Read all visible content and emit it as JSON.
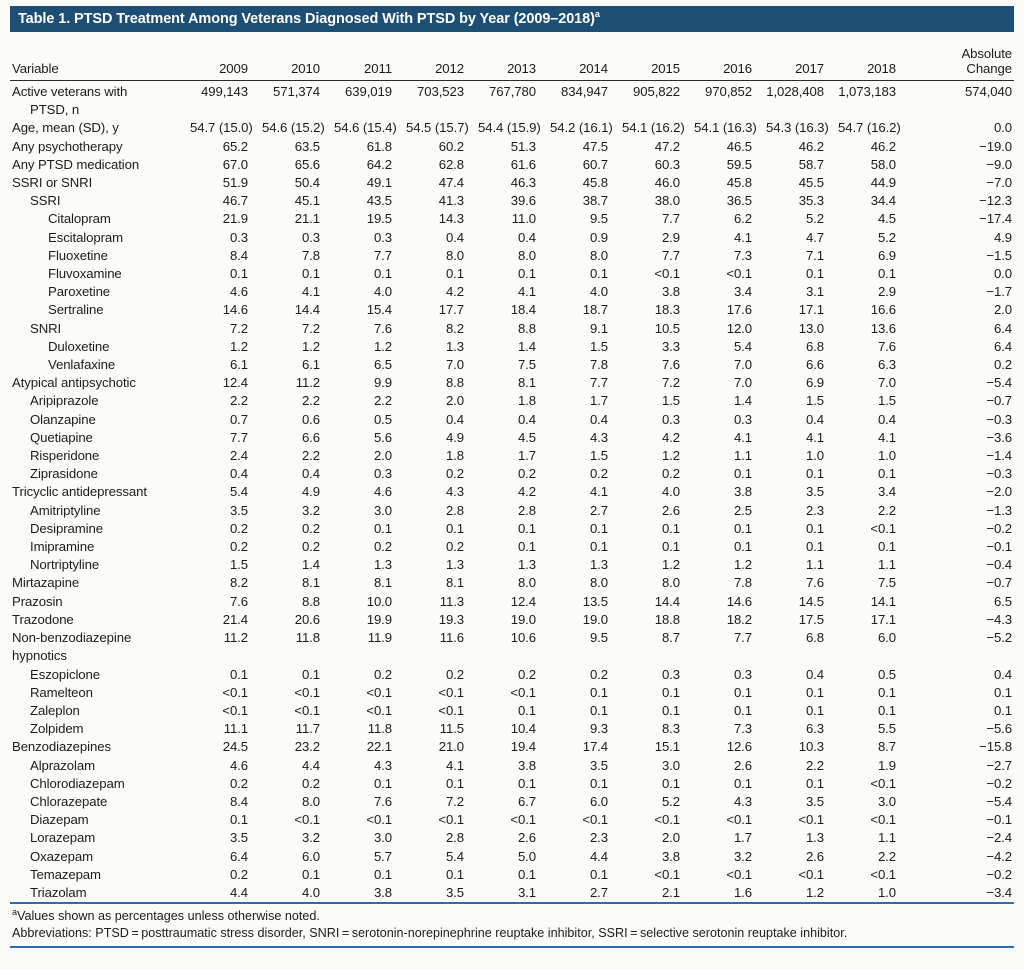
{
  "title": {
    "text": "Table 1. PTSD Treatment Among Veterans Diagnosed With PTSD by Year (2009–2018)",
    "superscript": "a"
  },
  "colors": {
    "title_bar": "#1d4e74",
    "rule_blue": "#2b6ea9",
    "header_rule": "#2a2a2a"
  },
  "columns": {
    "variable": "Variable",
    "years": [
      "2009",
      "2010",
      "2011",
      "2012",
      "2013",
      "2014",
      "2015",
      "2016",
      "2017",
      "2018"
    ],
    "change_line1": "Absolute",
    "change_line2": "Change"
  },
  "rows": [
    {
      "label": "Active veterans with",
      "label2": "PTSD, n",
      "indent": 0,
      "indent2": 1,
      "values": [
        "499,143",
        "571,374",
        "639,019",
        "703,523",
        "767,780",
        "834,947",
        "905,822",
        "970,852",
        "1,028,408",
        "1,073,183",
        "574,040"
      ]
    },
    {
      "label": "Age, mean (SD), y",
      "indent": 0,
      "values": [
        "54.7 (15.0)",
        "54.6 (15.2)",
        "54.6 (15.4)",
        "54.5 (15.7)",
        "54.4 (15.9)",
        "54.2 (16.1)",
        "54.1 (16.2)",
        "54.1 (16.3)",
        "54.3 (16.3)",
        "54.7 (16.2)",
        "0.0"
      ]
    },
    {
      "label": "Any psychotherapy",
      "indent": 0,
      "values": [
        "65.2",
        "63.5",
        "61.8",
        "60.2",
        "51.3",
        "47.5",
        "47.2",
        "46.5",
        "46.2",
        "46.2",
        "−19.0"
      ]
    },
    {
      "label": "Any PTSD medication",
      "indent": 0,
      "values": [
        "67.0",
        "65.6",
        "64.2",
        "62.8",
        "61.6",
        "60.7",
        "60.3",
        "59.5",
        "58.7",
        "58.0",
        "−9.0"
      ]
    },
    {
      "label": "SSRI or SNRI",
      "indent": 0,
      "values": [
        "51.9",
        "50.4",
        "49.1",
        "47.4",
        "46.3",
        "45.8",
        "46.0",
        "45.8",
        "45.5",
        "44.9",
        "−7.0"
      ]
    },
    {
      "label": "SSRI",
      "indent": 1,
      "values": [
        "46.7",
        "45.1",
        "43.5",
        "41.3",
        "39.6",
        "38.7",
        "38.0",
        "36.5",
        "35.3",
        "34.4",
        "−12.3"
      ]
    },
    {
      "label": "Citalopram",
      "indent": 2,
      "values": [
        "21.9",
        "21.1",
        "19.5",
        "14.3",
        "11.0",
        "9.5",
        "7.7",
        "6.2",
        "5.2",
        "4.5",
        "−17.4"
      ]
    },
    {
      "label": "Escitalopram",
      "indent": 2,
      "values": [
        "0.3",
        "0.3",
        "0.3",
        "0.4",
        "0.4",
        "0.9",
        "2.9",
        "4.1",
        "4.7",
        "5.2",
        "4.9"
      ]
    },
    {
      "label": "Fluoxetine",
      "indent": 2,
      "values": [
        "8.4",
        "7.8",
        "7.7",
        "8.0",
        "8.0",
        "8.0",
        "7.7",
        "7.3",
        "7.1",
        "6.9",
        "−1.5"
      ]
    },
    {
      "label": "Fluvoxamine",
      "indent": 2,
      "values": [
        "0.1",
        "0.1",
        "0.1",
        "0.1",
        "0.1",
        "0.1",
        "<0.1",
        "<0.1",
        "0.1",
        "0.1",
        "0.0"
      ]
    },
    {
      "label": "Paroxetine",
      "indent": 2,
      "values": [
        "4.6",
        "4.1",
        "4.0",
        "4.2",
        "4.1",
        "4.0",
        "3.8",
        "3.4",
        "3.1",
        "2.9",
        "−1.7"
      ]
    },
    {
      "label": "Sertraline",
      "indent": 2,
      "values": [
        "14.6",
        "14.4",
        "15.4",
        "17.7",
        "18.4",
        "18.7",
        "18.3",
        "17.6",
        "17.1",
        "16.6",
        "2.0"
      ]
    },
    {
      "label": "SNRI",
      "indent": 1,
      "values": [
        "7.2",
        "7.2",
        "7.6",
        "8.2",
        "8.8",
        "9.1",
        "10.5",
        "12.0",
        "13.0",
        "13.6",
        "6.4"
      ]
    },
    {
      "label": "Duloxetine",
      "indent": 2,
      "values": [
        "1.2",
        "1.2",
        "1.2",
        "1.3",
        "1.4",
        "1.5",
        "3.3",
        "5.4",
        "6.8",
        "7.6",
        "6.4"
      ]
    },
    {
      "label": "Venlafaxine",
      "indent": 2,
      "values": [
        "6.1",
        "6.1",
        "6.5",
        "7.0",
        "7.5",
        "7.8",
        "7.6",
        "7.0",
        "6.6",
        "6.3",
        "0.2"
      ]
    },
    {
      "label": "Atypical antipsychotic",
      "indent": 0,
      "values": [
        "12.4",
        "11.2",
        "9.9",
        "8.8",
        "8.1",
        "7.7",
        "7.2",
        "7.0",
        "6.9",
        "7.0",
        "−5.4"
      ]
    },
    {
      "label": "Aripiprazole",
      "indent": 1,
      "values": [
        "2.2",
        "2.2",
        "2.2",
        "2.0",
        "1.8",
        "1.7",
        "1.5",
        "1.4",
        "1.5",
        "1.5",
        "−0.7"
      ]
    },
    {
      "label": "Olanzapine",
      "indent": 1,
      "values": [
        "0.7",
        "0.6",
        "0.5",
        "0.4",
        "0.4",
        "0.4",
        "0.3",
        "0.3",
        "0.4",
        "0.4",
        "−0.3"
      ]
    },
    {
      "label": "Quetiapine",
      "indent": 1,
      "values": [
        "7.7",
        "6.6",
        "5.6",
        "4.9",
        "4.5",
        "4.3",
        "4.2",
        "4.1",
        "4.1",
        "4.1",
        "−3.6"
      ]
    },
    {
      "label": "Risperidone",
      "indent": 1,
      "values": [
        "2.4",
        "2.2",
        "2.0",
        "1.8",
        "1.7",
        "1.5",
        "1.2",
        "1.1",
        "1.0",
        "1.0",
        "−1.4"
      ]
    },
    {
      "label": "Ziprasidone",
      "indent": 1,
      "values": [
        "0.4",
        "0.4",
        "0.3",
        "0.2",
        "0.2",
        "0.2",
        "0.2",
        "0.1",
        "0.1",
        "0.1",
        "−0.3"
      ]
    },
    {
      "label": "Tricyclic antidepressant",
      "indent": 0,
      "values": [
        "5.4",
        "4.9",
        "4.6",
        "4.3",
        "4.2",
        "4.1",
        "4.0",
        "3.8",
        "3.5",
        "3.4",
        "−2.0"
      ]
    },
    {
      "label": "Amitriptyline",
      "indent": 1,
      "values": [
        "3.5",
        "3.2",
        "3.0",
        "2.8",
        "2.8",
        "2.7",
        "2.6",
        "2.5",
        "2.3",
        "2.2",
        "−1.3"
      ]
    },
    {
      "label": "Desipramine",
      "indent": 1,
      "values": [
        "0.2",
        "0.2",
        "0.1",
        "0.1",
        "0.1",
        "0.1",
        "0.1",
        "0.1",
        "0.1",
        "<0.1",
        "−0.2"
      ]
    },
    {
      "label": "Imipramine",
      "indent": 1,
      "values": [
        "0.2",
        "0.2",
        "0.2",
        "0.2",
        "0.1",
        "0.1",
        "0.1",
        "0.1",
        "0.1",
        "0.1",
        "−0.1"
      ]
    },
    {
      "label": "Nortriptyline",
      "indent": 1,
      "values": [
        "1.5",
        "1.4",
        "1.3",
        "1.3",
        "1.3",
        "1.3",
        "1.2",
        "1.2",
        "1.1",
        "1.1",
        "−0.4"
      ]
    },
    {
      "label": "Mirtazapine",
      "indent": 0,
      "values": [
        "8.2",
        "8.1",
        "8.1",
        "8.1",
        "8.0",
        "8.0",
        "8.0",
        "7.8",
        "7.6",
        "7.5",
        "−0.7"
      ]
    },
    {
      "label": "Prazosin",
      "indent": 0,
      "values": [
        "7.6",
        "8.8",
        "10.0",
        "11.3",
        "12.4",
        "13.5",
        "14.4",
        "14.6",
        "14.5",
        "14.1",
        "6.5"
      ]
    },
    {
      "label": "Trazodone",
      "indent": 0,
      "values": [
        "21.4",
        "20.6",
        "19.9",
        "19.3",
        "19.0",
        "19.0",
        "18.8",
        "18.2",
        "17.5",
        "17.1",
        "−4.3"
      ]
    },
    {
      "label": "Non-benzodiazepine",
      "label2": "hypnotics",
      "indent": 0,
      "indent2": 0,
      "values": [
        "11.2",
        "11.8",
        "11.9",
        "11.6",
        "10.6",
        "9.5",
        "8.7",
        "7.7",
        "6.8",
        "6.0",
        "−5.2"
      ]
    },
    {
      "label": "Eszopiclone",
      "indent": 1,
      "values": [
        "0.1",
        "0.1",
        "0.2",
        "0.2",
        "0.2",
        "0.2",
        "0.3",
        "0.3",
        "0.4",
        "0.5",
        "0.4"
      ]
    },
    {
      "label": "Ramelteon",
      "indent": 1,
      "values": [
        "<0.1",
        "<0.1",
        "<0.1",
        "<0.1",
        "<0.1",
        "0.1",
        "0.1",
        "0.1",
        "0.1",
        "0.1",
        "0.1"
      ]
    },
    {
      "label": "Zaleplon",
      "indent": 1,
      "values": [
        "<0.1",
        "<0.1",
        "<0.1",
        "<0.1",
        "0.1",
        "0.1",
        "0.1",
        "0.1",
        "0.1",
        "0.1",
        "0.1"
      ]
    },
    {
      "label": "Zolpidem",
      "indent": 1,
      "values": [
        "11.1",
        "11.7",
        "11.8",
        "11.5",
        "10.4",
        "9.3",
        "8.3",
        "7.3",
        "6.3",
        "5.5",
        "−5.6"
      ]
    },
    {
      "label": "Benzodiazepines",
      "indent": 0,
      "values": [
        "24.5",
        "23.2",
        "22.1",
        "21.0",
        "19.4",
        "17.4",
        "15.1",
        "12.6",
        "10.3",
        "8.7",
        "−15.8"
      ]
    },
    {
      "label": "Alprazolam",
      "indent": 1,
      "values": [
        "4.6",
        "4.4",
        "4.3",
        "4.1",
        "3.8",
        "3.5",
        "3.0",
        "2.6",
        "2.2",
        "1.9",
        "−2.7"
      ]
    },
    {
      "label": "Chlorodiazepam",
      "indent": 1,
      "values": [
        "0.2",
        "0.2",
        "0.1",
        "0.1",
        "0.1",
        "0.1",
        "0.1",
        "0.1",
        "0.1",
        "<0.1",
        "−0.2"
      ]
    },
    {
      "label": "Chlorazepate",
      "indent": 1,
      "values": [
        "8.4",
        "8.0",
        "7.6",
        "7.2",
        "6.7",
        "6.0",
        "5.2",
        "4.3",
        "3.5",
        "3.0",
        "−5.4"
      ]
    },
    {
      "label": "Diazepam",
      "indent": 1,
      "values": [
        "0.1",
        "<0.1",
        "<0.1",
        "<0.1",
        "<0.1",
        "<0.1",
        "<0.1",
        "<0.1",
        "<0.1",
        "<0.1",
        "−0.1"
      ]
    },
    {
      "label": "Lorazepam",
      "indent": 1,
      "values": [
        "3.5",
        "3.2",
        "3.0",
        "2.8",
        "2.6",
        "2.3",
        "2.0",
        "1.7",
        "1.3",
        "1.1",
        "−2.4"
      ]
    },
    {
      "label": "Oxazepam",
      "indent": 1,
      "values": [
        "6.4",
        "6.0",
        "5.7",
        "5.4",
        "5.0",
        "4.4",
        "3.8",
        "3.2",
        "2.6",
        "2.2",
        "−4.2"
      ]
    },
    {
      "label": "Temazepam",
      "indent": 1,
      "values": [
        "0.2",
        "0.1",
        "0.1",
        "0.1",
        "0.1",
        "0.1",
        "<0.1",
        "<0.1",
        "<0.1",
        "<0.1",
        "−0.2"
      ]
    },
    {
      "label": "Triazolam",
      "indent": 1,
      "values": [
        "4.4",
        "4.0",
        "3.8",
        "3.5",
        "3.1",
        "2.7",
        "2.1",
        "1.6",
        "1.2",
        "1.0",
        "−3.4"
      ]
    }
  ],
  "footnotes": {
    "note_superscript": "a",
    "note": "Values shown as percentages unless otherwise noted.",
    "abbreviations": "Abbreviations: PTSD = posttraumatic stress disorder, SNRI = serotonin-norepinephrine reuptake inhibitor, SSRI = selective serotonin reuptake inhibitor."
  }
}
